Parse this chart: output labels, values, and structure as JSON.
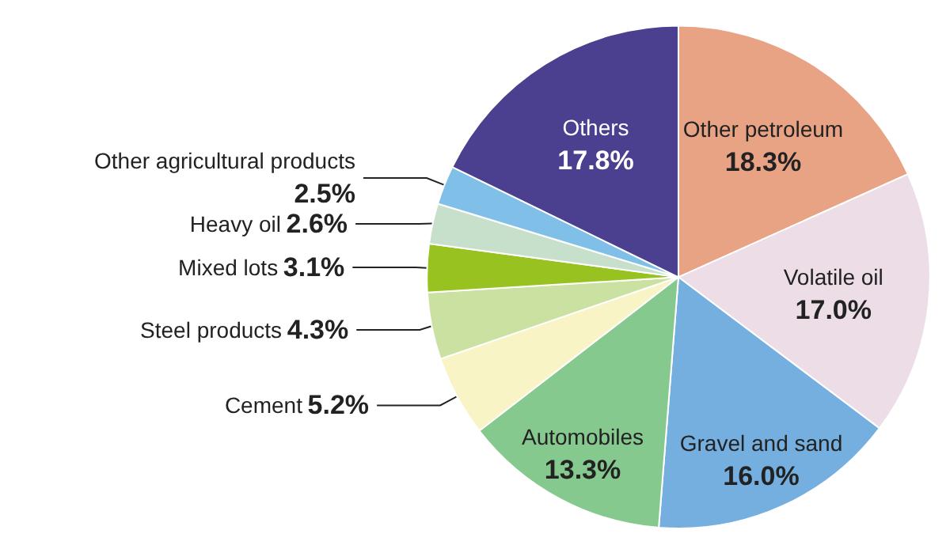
{
  "chart_data": {
    "type": "pie",
    "categories": [
      "Other petroleum",
      "Volatile oil",
      "Gravel and sand",
      "Automobiles",
      "Cement",
      "Steel products",
      "Mixed lots",
      "Heavy oil",
      "Other agricultural products",
      "Others"
    ],
    "values": [
      18.3,
      17.0,
      16.0,
      13.3,
      5.2,
      4.3,
      3.1,
      2.6,
      2.5,
      17.8
    ],
    "value_labels": [
      "18.3%",
      "17.0%",
      "16.0%",
      "13.3%",
      "5.2%",
      "4.3%",
      "3.1%",
      "2.6%",
      "2.5%",
      "17.8%"
    ],
    "colors": [
      "#e8a385",
      "#ecdde6",
      "#74afe0",
      "#86c98f",
      "#f8f4c6",
      "#cbe1a2",
      "#97c21f",
      "#c6e0cb",
      "#80bfe8",
      "#4b3f8f"
    ]
  }
}
